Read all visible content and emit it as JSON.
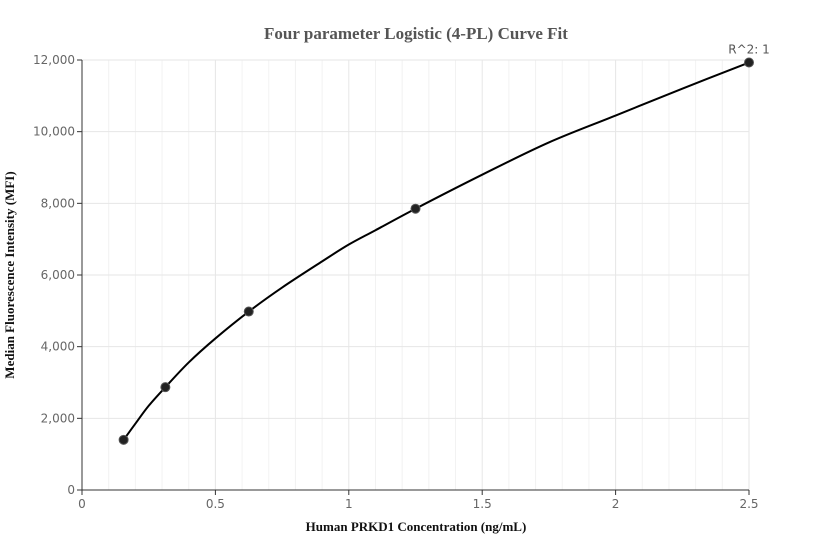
{
  "chart_data": {
    "type": "scatter",
    "title": "Four parameter Logistic (4-PL) Curve Fit",
    "xlabel": "Human PRKD1 Concentration (ng/mL)",
    "ylabel": "Median Fluorescence Intensity (MFI)",
    "xlim": [
      0,
      2.5
    ],
    "ylim": [
      0,
      12000
    ],
    "x_ticks": [
      0,
      0.5,
      1,
      1.5,
      2,
      2.5
    ],
    "x_tick_labels": [
      "0",
      "0.5",
      "1",
      "1.5",
      "2",
      "2.5"
    ],
    "y_ticks": [
      0,
      2000,
      4000,
      6000,
      8000,
      10000,
      12000
    ],
    "y_tick_labels": [
      "0",
      "2,000",
      "4,000",
      "6,000",
      "8,000",
      "10,000",
      "12,000"
    ],
    "grid": true,
    "points": [
      {
        "x": 0.156,
        "y": 1400
      },
      {
        "x": 0.3125,
        "y": 2870
      },
      {
        "x": 0.625,
        "y": 4980
      },
      {
        "x": 1.25,
        "y": 7850
      },
      {
        "x": 2.5,
        "y": 11930
      }
    ],
    "fit_curve": {
      "x": [
        0.156,
        0.2,
        0.25,
        0.3125,
        0.4,
        0.5,
        0.625,
        0.75,
        0.9,
        1.0,
        1.1,
        1.25,
        1.5,
        1.75,
        2.0,
        2.25,
        2.5
      ],
      "y": [
        1400,
        1850,
        2350,
        2870,
        3560,
        4230,
        4980,
        5650,
        6380,
        6850,
        7250,
        7850,
        8800,
        9700,
        10450,
        11200,
        11930
      ]
    },
    "annotation": "R^2: 1",
    "line_color": "#000000",
    "point_color": "#222222"
  }
}
